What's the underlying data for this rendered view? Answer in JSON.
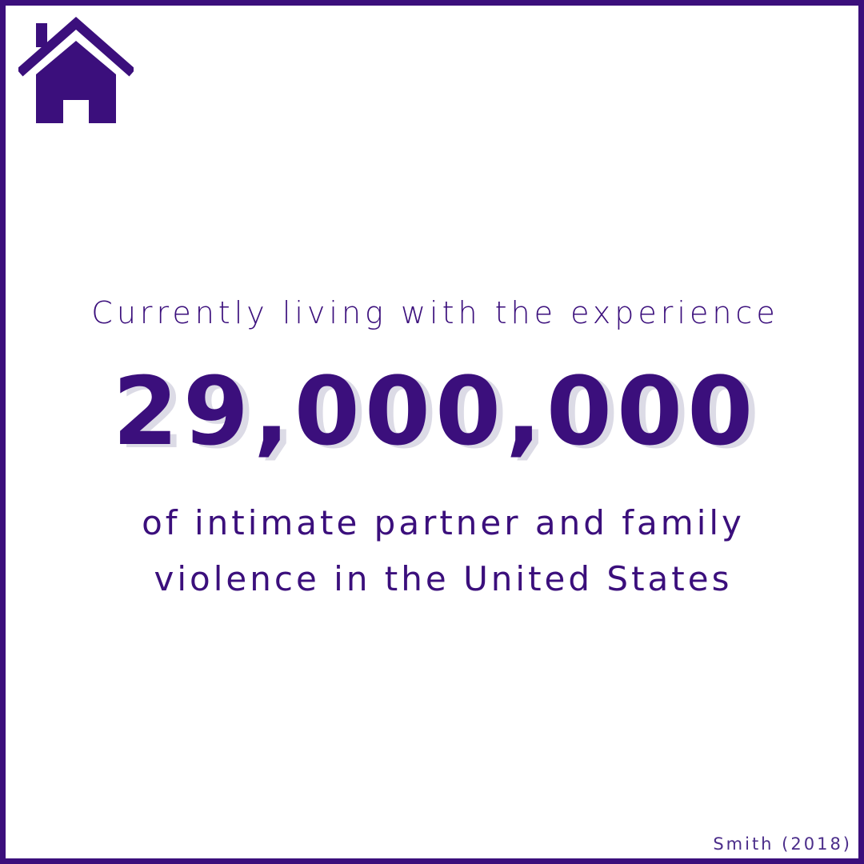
{
  "colors": {
    "primary": "#3b0f7c",
    "shadow": "#dcdbe6",
    "background": "#ffffff"
  },
  "icon": "home-icon",
  "headline": {
    "intro": "Currently living with the experience",
    "number": "29,000,000",
    "line1": "of intimate partner and family",
    "line2": "violence in the United States"
  },
  "citation": "Smith (2018)"
}
